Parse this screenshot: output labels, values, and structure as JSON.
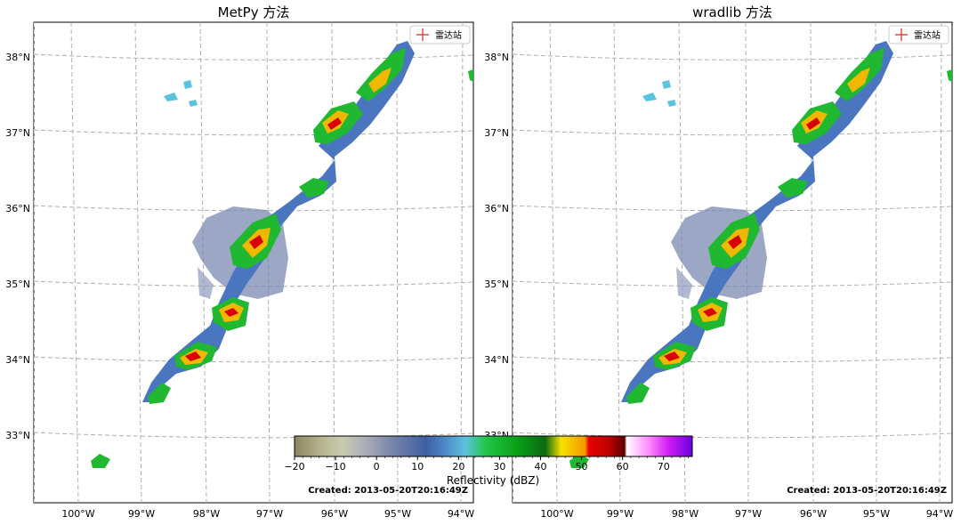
{
  "panels": [
    {
      "title": "MetPy 方法",
      "legend_label": "雷达站",
      "created": "Created: 2013-05-20T20:16:49Z",
      "lat_ticks": [
        "38°N",
        "37°N",
        "36°N",
        "35°N",
        "34°N",
        "33°N"
      ],
      "lon_ticks": [
        "100°W",
        "99°W",
        "98°W",
        "97°W",
        "96°W",
        "95°W",
        "94°W"
      ]
    },
    {
      "title": "wradlib 方法",
      "legend_label": "雷达站",
      "created": "Created: 2013-05-20T20:16:49Z",
      "lat_ticks": [
        "38°N",
        "37°N",
        "36°N",
        "35°N",
        "34°N",
        "33°N"
      ],
      "lon_ticks": [
        "100°W",
        "99°W",
        "98°W",
        "97°W",
        "96°W",
        "95°W",
        "94°W"
      ]
    }
  ],
  "colorbar": {
    "label": "Reflectivity (dBZ)",
    "ticks": [
      "−20",
      "−10",
      "0",
      "10",
      "20",
      "30",
      "40",
      "50",
      "60",
      "70"
    ],
    "tick_values": [
      -20,
      -10,
      0,
      10,
      20,
      30,
      40,
      50,
      60,
      70
    ],
    "range": [
      -20,
      77
    ]
  },
  "colors": {
    "radar_marker": "#e0302a",
    "grid": "#b0b0b0"
  }
}
